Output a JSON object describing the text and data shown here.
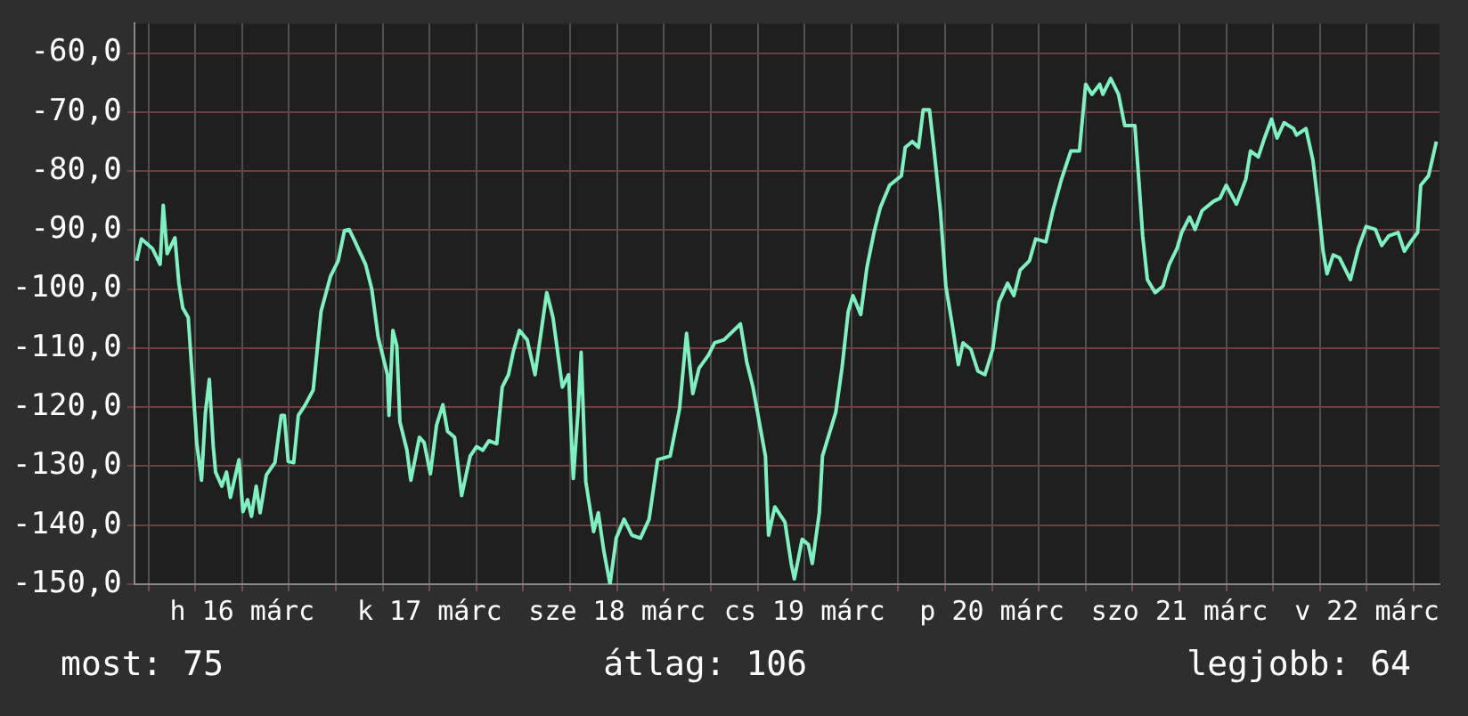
{
  "chart_data": {
    "type": "line",
    "x": [
      "--03-15T22:30",
      "--03-15T23:06",
      "--03-16T00:30",
      "--03-16T01:30",
      "--03-16T01:54",
      "--03-16T02:24",
      "--03-16T03:24",
      "--03-16T03:54",
      "--03-16T04:24",
      "--03-16T05:06",
      "--03-16T06:12",
      "--03-16T06:48",
      "--03-16T07:18",
      "--03-16T07:48",
      "--03-16T08:18",
      "--03-16T08:36",
      "--03-16T09:24",
      "--03-16T10:00",
      "--03-16T10:30",
      "--03-16T11:36",
      "--03-16T12:06",
      "--03-16T12:42",
      "--03-16T13:12",
      "--03-16T13:48",
      "--03-16T14:18",
      "--03-16T15:06",
      "--03-16T16:12",
      "--03-16T17:00",
      "--03-16T17:24",
      "--03-16T17:54",
      "--03-16T18:36",
      "--03-16T19:12",
      "--03-16T20:00",
      "--03-16T21:06",
      "--03-16T22:06",
      "--03-16T23:18",
      "--03-17T00:18",
      "--03-17T01:06",
      "--03-17T01:42",
      "--03-17T02:18",
      "--03-17T03:48",
      "--03-17T04:36",
      "--03-17T05:24",
      "--03-17T06:36",
      "--03-17T06:48",
      "--03-17T07:18",
      "--03-17T07:48",
      "--03-17T08:12",
      "--03-17T09:06",
      "--03-17T09:36",
      "--03-17T10:42",
      "--03-17T11:18",
      "--03-17T12:06",
      "--03-17T12:54",
      "--03-17T13:42",
      "--03-17T14:18",
      "--03-17T15:12",
      "--03-17T16:06",
      "--03-17T17:12",
      "--03-17T18:00",
      "--03-17T18:48",
      "--03-17T19:36",
      "--03-17T20:36",
      "--03-17T21:18",
      "--03-17T22:06",
      "--03-17T22:42",
      "--03-17T23:30",
      "--03-18T00:30",
      "--03-18T01:30",
      "--03-18T03:00",
      "--03-18T03:48",
      "--03-18T05:00",
      "--03-18T05:48",
      "--03-18T06:24",
      "--03-18T07:00",
      "--03-18T07:24",
      "--03-18T08:00",
      "--03-18T09:00",
      "--03-18T09:36",
      "--03-18T10:18",
      "--03-18T11:06",
      "--03-18T11:54",
      "--03-18T12:54",
      "--03-18T13:54",
      "--03-18T15:00",
      "--03-18T16:06",
      "--03-18T17:12",
      "--03-18T18:48",
      "--03-18T20:00",
      "--03-18T20:54",
      "--03-18T21:42",
      "--03-18T22:30",
      "--03-18T23:42",
      "--03-19T00:30",
      "--03-19T01:42",
      "--03-19T03:48",
      "--03-19T04:36",
      "--03-19T05:24",
      "--03-19T07:00",
      "--03-19T07:24",
      "--03-19T08:12",
      "--03-19T09:30",
      "--03-19T10:18",
      "--03-19T10:42",
      "--03-19T11:42",
      "--03-19T12:30",
      "--03-19T13:00",
      "--03-19T13:54",
      "--03-19T14:18",
      "--03-19T14:54",
      "--03-19T16:00",
      "--03-19T16:48",
      "--03-19T17:36",
      "--03-19T18:12",
      "--03-19T19:12",
      "--03-19T20:00",
      "--03-19T20:54",
      "--03-19T21:42",
      "--03-19T22:54",
      "--03-20T00:24",
      "--03-20T00:54",
      "--03-20T01:48",
      "--03-20T02:36",
      "--03-20T03:12",
      "--03-20T04:00",
      "--03-20T04:36",
      "--03-20T05:24",
      "--03-20T06:06",
      "--03-20T06:54",
      "--03-20T07:42",
      "--03-20T08:18",
      "--03-20T09:18",
      "--03-20T10:12",
      "--03-20T11:06",
      "--03-20T12:06",
      "--03-20T12:54",
      "--03-20T14:00",
      "--03-20T14:48",
      "--03-20T15:36",
      "--03-20T16:48",
      "--03-20T17:36",
      "--03-20T18:54",
      "--03-20T19:48",
      "--03-20T20:54",
      "--03-20T22:06",
      "--03-20T23:12",
      "--03-21T00:00",
      "--03-21T00:48",
      "--03-21T01:48",
      "--03-21T02:12",
      "--03-21T03:12",
      "--03-21T04:12",
      "--03-21T05:00",
      "--03-21T06:18",
      "--03-21T06:48",
      "--03-21T07:18",
      "--03-21T07:54",
      "--03-21T08:54",
      "--03-21T09:54",
      "--03-21T10:42",
      "--03-21T11:42",
      "--03-21T12:18",
      "--03-21T13:18",
      "--03-21T14:00",
      "--03-21T14:54",
      "--03-21T16:24",
      "--03-21T17:12",
      "--03-21T18:00",
      "--03-21T19:18",
      "--03-21T20:30",
      "--03-21T21:06",
      "--03-21T22:06",
      "--03-21T22:54",
      "--03-21T23:48",
      "--03-22T00:30",
      "--03-22T01:24",
      "--03-22T02:36",
      "--03-22T03:00",
      "--03-22T04:12",
      "--03-22T05:06",
      "--03-22T05:54",
      "--03-22T06:24",
      "--03-22T06:54",
      "--03-22T07:42",
      "--03-22T08:30",
      "--03-22T09:06",
      "--03-22T09:54",
      "--03-22T10:54",
      "--03-22T11:54",
      "--03-22T13:06",
      "--03-22T13:54",
      "--03-22T14:48",
      "--03-22T16:00",
      "--03-22T16:48",
      "--03-22T17:36",
      "--03-22T18:30",
      "--03-22T18:54",
      "--03-22T19:54",
      "--03-22T20:54"
    ],
    "series": [
      {
        "color": "#80f0c0",
        "values": [
          -95.2,
          -91.5,
          -93.1,
          -95.8,
          -85.8,
          -94,
          -91.3,
          -99,
          -103.2,
          -104.8,
          -126.2,
          -132.4,
          -120.9,
          -115.3,
          -126.6,
          -131,
          -133.4,
          -131,
          -135.3,
          -128.9,
          -137.7,
          -135.7,
          -138.5,
          -133.4,
          -137.9,
          -131.5,
          -129.4,
          -121.4,
          -121.4,
          -129.2,
          -129.4,
          -121.4,
          -119.8,
          -117.1,
          -103.8,
          -97.9,
          -95.2,
          -90.1,
          -89.9,
          -91.5,
          -95.8,
          -100,
          -108,
          -114.5,
          -121.4,
          -107,
          -109.6,
          -122.5,
          -127.3,
          -132.4,
          -125.1,
          -126,
          -131.3,
          -123,
          -119.6,
          -124.1,
          -125.1,
          -135,
          -128.3,
          -126.7,
          -127.3,
          -125.7,
          -126.2,
          -116.6,
          -114.5,
          -110.7,
          -107,
          -108.6,
          -114.5,
          -100.6,
          -104.8,
          -116.6,
          -114.5,
          -132.1,
          -120.9,
          -110.7,
          -132.6,
          -141.1,
          -137.9,
          -144.3,
          -150,
          -142.2,
          -139,
          -141.7,
          -142.2,
          -139,
          -128.9,
          -128.3,
          -120.3,
          -107.5,
          -117.7,
          -113.4,
          -111.2,
          -109.1,
          -108.6,
          -105.9,
          -112.3,
          -116.6,
          -128.3,
          -141.7,
          -136.9,
          -139.5,
          -146.5,
          -149.1,
          -142.4,
          -143.3,
          -146.5,
          -137.9,
          -128.3,
          -125.7,
          -120.9,
          -113.4,
          -103.8,
          -101.1,
          -104.3,
          -96.3,
          -90.4,
          -86.2,
          -82.4,
          -80.8,
          -76,
          -75,
          -76,
          -69.6,
          -69.6,
          -76.6,
          -86.7,
          -99.5,
          -105.9,
          -112.8,
          -109.1,
          -110.2,
          -113.9,
          -114.5,
          -110.2,
          -102.2,
          -99,
          -101.1,
          -96.8,
          -95.2,
          -91.5,
          -92,
          -86.7,
          -81.4,
          -76.6,
          -76.6,
          -65.3,
          -67,
          -65.3,
          -67,
          -64.3,
          -67,
          -72.3,
          -72.3,
          -81.4,
          -91,
          -98.4,
          -100.6,
          -99.5,
          -95.8,
          -93.1,
          -90.4,
          -87.8,
          -89.9,
          -86.7,
          -85.1,
          -84.6,
          -82.4,
          -85.6,
          -81.4,
          -76.6,
          -77.6,
          -74.4,
          -71.2,
          -74.4,
          -71.8,
          -72.8,
          -73.9,
          -72.8,
          -78.2,
          -87.2,
          -93.6,
          -97.4,
          -94.2,
          -94.7,
          -96.3,
          -98.4,
          -93.1,
          -89.4,
          -89.9,
          -92.6,
          -91,
          -90.4,
          -93.6,
          -92,
          -90.4,
          -82.4,
          -80.8,
          -75
        ]
      }
    ],
    "xlim": [
      "--03-15T22:12",
      "--03-22T21:18"
    ],
    "xticks": [
      {
        "value": "--03-16T00:00",
        "label": null
      },
      {
        "value": "--03-16T06:00",
        "label": null
      },
      {
        "value": "--03-16T12:00",
        "label": "h 16 márc"
      },
      {
        "value": "--03-16T18:00",
        "label": null
      },
      {
        "value": "--03-17T00:00",
        "label": null
      },
      {
        "value": "--03-17T06:00",
        "label": null
      },
      {
        "value": "--03-17T12:00",
        "label": "k 17 márc"
      },
      {
        "value": "--03-17T18:00",
        "label": null
      },
      {
        "value": "--03-18T00:00",
        "label": null
      },
      {
        "value": "--03-18T06:00",
        "label": null
      },
      {
        "value": "--03-18T12:00",
        "label": "sze 18 márc"
      },
      {
        "value": "--03-18T18:00",
        "label": null
      },
      {
        "value": "--03-19T00:00",
        "label": null
      },
      {
        "value": "--03-19T06:00",
        "label": null
      },
      {
        "value": "--03-19T12:00",
        "label": "cs 19 márc"
      },
      {
        "value": "--03-19T18:00",
        "label": null
      },
      {
        "value": "--03-20T00:00",
        "label": null
      },
      {
        "value": "--03-20T06:00",
        "label": null
      },
      {
        "value": "--03-20T12:00",
        "label": "p 20 márc"
      },
      {
        "value": "--03-20T18:00",
        "label": null
      },
      {
        "value": "--03-21T00:00",
        "label": null
      },
      {
        "value": "--03-21T06:00",
        "label": null
      },
      {
        "value": "--03-21T12:00",
        "label": "szo 21 márc"
      },
      {
        "value": "--03-21T18:00",
        "label": null
      },
      {
        "value": "--03-22T00:00",
        "label": null
      },
      {
        "value": "--03-22T06:00",
        "label": null
      },
      {
        "value": "--03-22T12:00",
        "label": "v 22 márc"
      },
      {
        "value": "--03-22T18:00",
        "label": null
      }
    ],
    "ylim": [
      -150,
      -55
    ],
    "yticks": [
      {
        "value": -150,
        "label": "-150,0"
      },
      {
        "value": -140,
        "label": "-140,0"
      },
      {
        "value": -130,
        "label": "-130,0"
      },
      {
        "value": -120,
        "label": "-120,0"
      },
      {
        "value": -110,
        "label": "-110,0"
      },
      {
        "value": -100,
        "label": "-100,0"
      },
      {
        "value": -90,
        "label": "-90,0"
      },
      {
        "value": -80,
        "label": "-80,0"
      },
      {
        "value": -70,
        "label": "-70,0"
      },
      {
        "value": -60,
        "label": "-60,0"
      }
    ],
    "grid": true,
    "legend": false,
    "marker": "none",
    "line_style": "solid",
    "annotations": [
      "most: 75",
      "átlag: 106",
      "legjobb: 64"
    ]
  }
}
